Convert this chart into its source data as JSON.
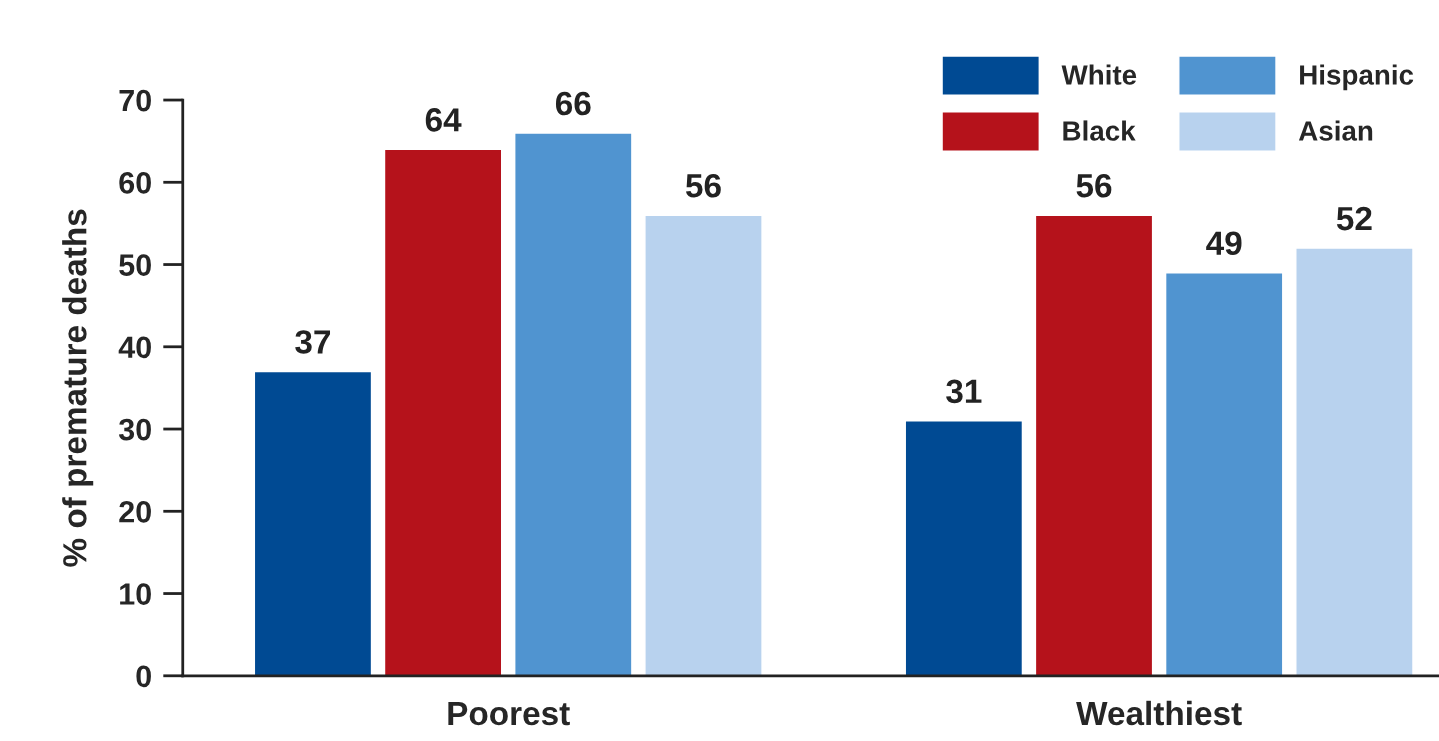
{
  "chart_data": {
    "type": "bar",
    "ylabel": "% of premature deaths",
    "categories": [
      "Poorest",
      "Wealthiest"
    ],
    "series": [
      {
        "name": "White",
        "color": "#004a93",
        "values": [
          37,
          31
        ]
      },
      {
        "name": "Black",
        "color": "#b5121b",
        "values": [
          64,
          56
        ]
      },
      {
        "name": "Hispanic",
        "color": "#5094d0",
        "values": [
          66,
          49
        ]
      },
      {
        "name": "Asian",
        "color": "#b8d2ee",
        "values": [
          56,
          52
        ]
      }
    ],
    "ylim": [
      0,
      70
    ],
    "yticks": [
      0,
      10,
      20,
      30,
      40,
      50,
      60,
      70
    ],
    "data_labels": true,
    "grid": false,
    "legend": "top right"
  }
}
